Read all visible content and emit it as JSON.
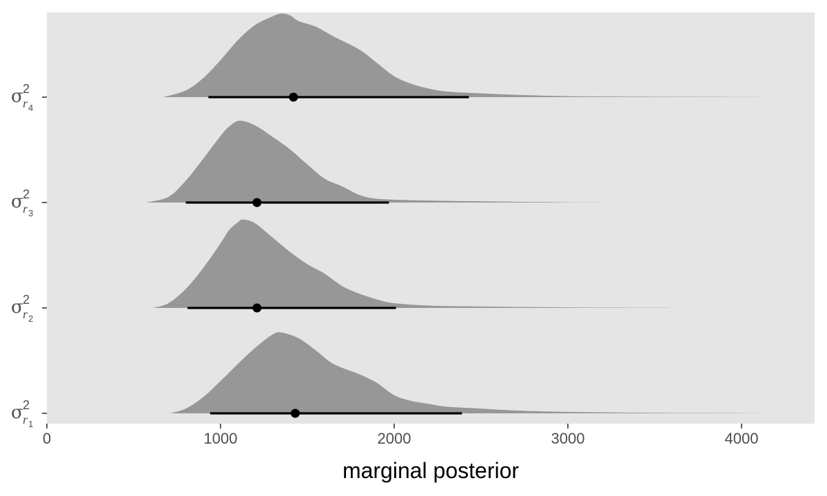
{
  "chart_data": {
    "type": "area",
    "subtype": "ridgeline density with point-interval",
    "title": "",
    "xlabel": "marginal posterior",
    "ylabel": "",
    "xlim": [
      0,
      4420
    ],
    "x_ticks": [
      0,
      1000,
      2000,
      3000,
      4000
    ],
    "x_tick_labels": [
      "0",
      "1000",
      "2000",
      "3000",
      "4000"
    ],
    "grid": false,
    "panel_background": "#e5e5e5",
    "density_fill": "#979797",
    "interval_color": "#000000",
    "series": [
      {
        "label": {
          "symbol": "σ",
          "sup": "2",
          "sub": "r",
          "subsub": "1"
        },
        "point": 1430,
        "interval": [
          940,
          2390
        ],
        "density": [
          [
            710,
            0.0
          ],
          [
            800,
            0.05
          ],
          [
            900,
            0.17
          ],
          [
            1000,
            0.34
          ],
          [
            1100,
            0.52
          ],
          [
            1200,
            0.69
          ],
          [
            1300,
            0.83
          ],
          [
            1350,
            0.85
          ],
          [
            1450,
            0.79
          ],
          [
            1550,
            0.66
          ],
          [
            1650,
            0.52
          ],
          [
            1800,
            0.41
          ],
          [
            1900,
            0.32
          ],
          [
            2000,
            0.19
          ],
          [
            2100,
            0.13
          ],
          [
            2200,
            0.1
          ],
          [
            2300,
            0.07
          ],
          [
            2500,
            0.05
          ],
          [
            2700,
            0.03
          ],
          [
            3000,
            0.015
          ],
          [
            3500,
            0.006
          ],
          [
            4000,
            0.002
          ],
          [
            4220,
            0.0
          ]
        ]
      },
      {
        "label": {
          "symbol": "σ",
          "sup": "2",
          "sub": "r",
          "subsub": "2"
        },
        "point": 1210,
        "interval": [
          810,
          2010
        ],
        "density": [
          [
            610,
            0.0
          ],
          [
            700,
            0.05
          ],
          [
            800,
            0.2
          ],
          [
            900,
            0.42
          ],
          [
            1000,
            0.68
          ],
          [
            1050,
            0.82
          ],
          [
            1100,
            0.9
          ],
          [
            1130,
            0.93
          ],
          [
            1200,
            0.89
          ],
          [
            1300,
            0.74
          ],
          [
            1400,
            0.59
          ],
          [
            1500,
            0.46
          ],
          [
            1600,
            0.36
          ],
          [
            1700,
            0.23
          ],
          [
            1800,
            0.15
          ],
          [
            1900,
            0.09
          ],
          [
            2000,
            0.05
          ],
          [
            2200,
            0.025
          ],
          [
            2500,
            0.015
          ],
          [
            3000,
            0.006
          ],
          [
            3550,
            0.002
          ],
          [
            3580,
            0.0
          ]
        ]
      },
      {
        "label": {
          "symbol": "σ",
          "sup": "2",
          "sub": "r",
          "subsub": "3"
        },
        "point": 1210,
        "interval": [
          800,
          1970
        ],
        "density": [
          [
            570,
            0.0
          ],
          [
            700,
            0.06
          ],
          [
            800,
            0.23
          ],
          [
            900,
            0.46
          ],
          [
            1000,
            0.7
          ],
          [
            1050,
            0.8
          ],
          [
            1110,
            0.86
          ],
          [
            1200,
            0.81
          ],
          [
            1300,
            0.69
          ],
          [
            1400,
            0.56
          ],
          [
            1500,
            0.4
          ],
          [
            1600,
            0.25
          ],
          [
            1700,
            0.17
          ],
          [
            1800,
            0.08
          ],
          [
            1900,
            0.04
          ],
          [
            2100,
            0.025
          ],
          [
            2400,
            0.015
          ],
          [
            2700,
            0.008
          ],
          [
            3000,
            0.003
          ],
          [
            3250,
            0.0
          ]
        ]
      },
      {
        "label": {
          "symbol": "σ",
          "sup": "2",
          "sub": "r",
          "subsub": "4"
        },
        "point": 1420,
        "interval": [
          930,
          2430
        ],
        "density": [
          [
            670,
            0.0
          ],
          [
            800,
            0.07
          ],
          [
            900,
            0.2
          ],
          [
            1000,
            0.39
          ],
          [
            1100,
            0.6
          ],
          [
            1200,
            0.76
          ],
          [
            1300,
            0.85
          ],
          [
            1350,
            0.88
          ],
          [
            1400,
            0.86
          ],
          [
            1450,
            0.8
          ],
          [
            1550,
            0.74
          ],
          [
            1650,
            0.64
          ],
          [
            1800,
            0.5
          ],
          [
            1900,
            0.36
          ],
          [
            2000,
            0.22
          ],
          [
            2100,
            0.14
          ],
          [
            2200,
            0.09
          ],
          [
            2300,
            0.06
          ],
          [
            2500,
            0.04
          ],
          [
            2700,
            0.025
          ],
          [
            3000,
            0.01
          ],
          [
            3500,
            0.004
          ],
          [
            4000,
            0.002
          ],
          [
            4190,
            0.0
          ]
        ]
      }
    ]
  }
}
